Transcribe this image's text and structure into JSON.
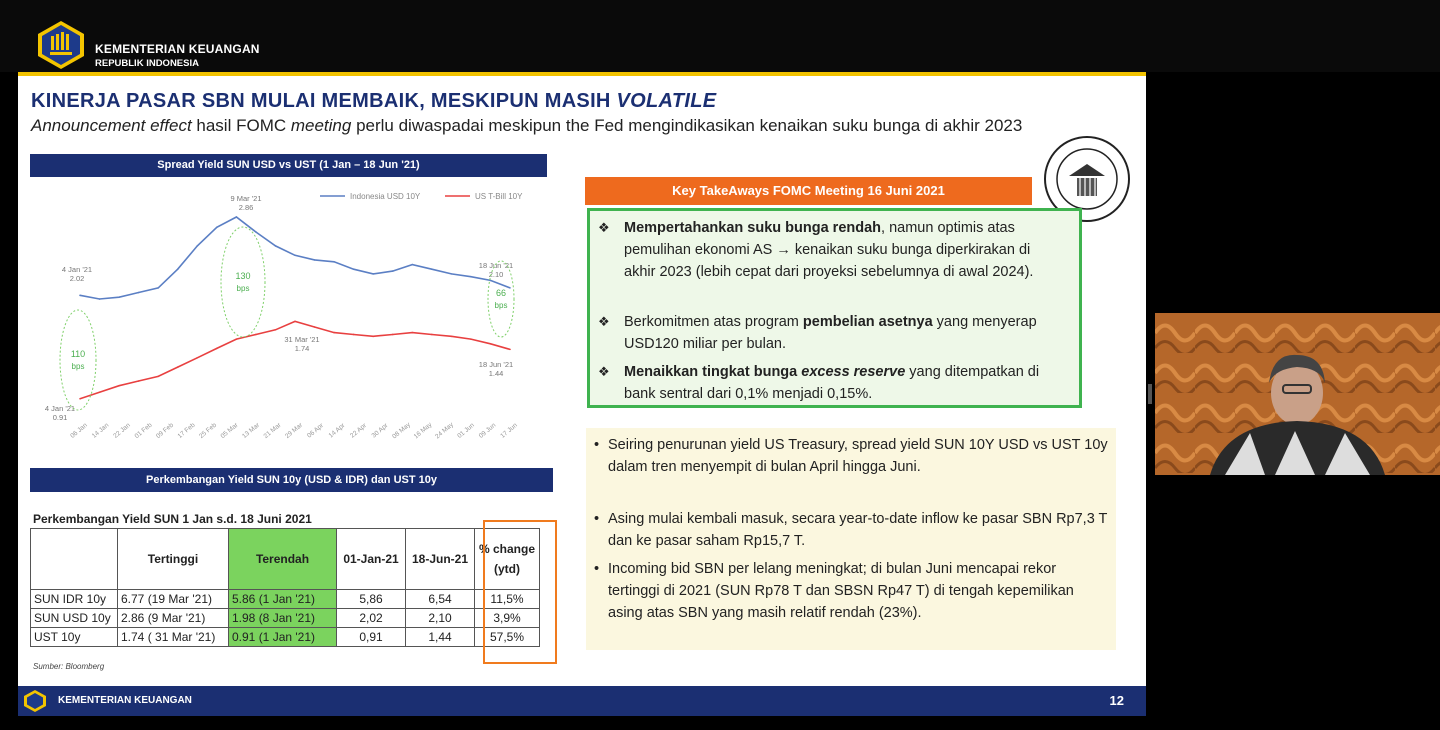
{
  "header": {
    "org_name": "KEMENTERIAN KEUANGAN",
    "org_sub": "REPUBLIK INDONESIA"
  },
  "slide": {
    "title_main": "KINERJA PASAR SBN MULAI MEMBAIK, MESKIPUN MASIH ",
    "title_italic": "VOLATILE",
    "subtitle_italic1": "Announcement effect",
    "subtitle_text1": " hasil FOMC ",
    "subtitle_italic2": "meeting",
    "subtitle_text2": " perlu diwaspadai meskipun the Fed mengindikasikan kenaikan suku bunga di akhir 2023",
    "chart1_header": "Spread Yield SUN USD vs UST (1 Jan – 18 Jun '21)",
    "chart2_header": "Perkembangan Yield SUN 10y (USD & IDR) dan UST 10y",
    "table_caption": "Perkembangan Yield SUN 1 Jan s.d. 18 Juni 2021",
    "table": {
      "headers": [
        "",
        "Tertinggi",
        "Terendah",
        "01-Jan-21",
        "18-Jun-21",
        "% change (ytd)"
      ],
      "rows": [
        [
          "SUN IDR 10y",
          "6.77 (19 Mar '21)",
          "5.86 (1 Jan '21)",
          "5,86",
          "6,54",
          "11,5%"
        ],
        [
          "SUN USD 10y",
          "2.86 (9 Mar '21)",
          "1.98 (8 Jan '21)",
          "2,02",
          "2,10",
          "3,9%"
        ],
        [
          "UST 10y",
          "1.74 ( 31 Mar '21)",
          "0.91 (1 Jan '21)",
          "0,91",
          "1,44",
          "57,5%"
        ]
      ]
    },
    "source": "Sumber: Bloomberg",
    "fomc_header": "Key TakeAways FOMC Meeting 16 Juni 2021",
    "fomc_items": [
      {
        "bold": "Mempertahankan suku bunga rendah",
        "rest": ", namun optimis atas pemulihan ekonomi AS → kenaikan suku bunga diperkirakan di akhir 2023 (lebih cepat dari proyeksi sebelumnya di awal 2024)."
      },
      {
        "pre": "Berkomitmen atas program ",
        "bold": "pembelian asetnya",
        "rest": " yang menyerap USD120 miliar per bulan."
      },
      {
        "bold": "Menaikkan tingkat bunga ",
        "bolditalic": "excess reserve",
        "rest": " yang ditempatkan di bank sentral dari 0,1% menjadi 0,15%."
      }
    ],
    "info_items": [
      "Seiring penurunan yield US Treasury, spread yield SUN 10Y USD vs UST 10y dalam tren menyempit di bulan April hingga Juni.",
      "Asing mulai kembali masuk, secara year-to-date inflow ke pasar SBN Rp7,3 T dan ke pasar saham Rp15,7 T.",
      "Incoming bid SBN per lelang meningkat; di bulan Juni mencapai rekor tertinggi di 2021 (SUN Rp78 T dan SBSN Rp47 T) di tengah kepemilikan asing atas SBN yang masih relatif rendah (23%)."
    ],
    "footer_text": "KEMENTERIAN KEUANGAN",
    "page_number": "12"
  },
  "chart_data": {
    "type": "line",
    "title": "Spread Yield SUN USD vs UST (1 Jan – 18 Jun '21)",
    "series": [
      {
        "name": "Indonesia USD 10Y",
        "color": "#5b7fc4",
        "values": [
          2.02,
          1.98,
          2.0,
          2.05,
          2.1,
          2.3,
          2.55,
          2.75,
          2.86,
          2.7,
          2.55,
          2.45,
          2.4,
          2.38,
          2.3,
          2.25,
          2.28,
          2.35,
          2.3,
          2.25,
          2.22,
          2.18,
          2.1
        ]
      },
      {
        "name": "US T-Bill 10Y",
        "color": "#e84040",
        "values": [
          0.91,
          0.98,
          1.05,
          1.1,
          1.15,
          1.25,
          1.35,
          1.45,
          1.55,
          1.6,
          1.65,
          1.74,
          1.68,
          1.62,
          1.6,
          1.58,
          1.6,
          1.62,
          1.6,
          1.58,
          1.55,
          1.5,
          1.44
        ]
      }
    ],
    "xlabels": [
      "06 Jan",
      "14 Jan",
      "22 Jan",
      "01 Feb",
      "09 Feb",
      "17 Feb",
      "25 Feb",
      "05 Mar",
      "13 Mar",
      "21 Mar",
      "29 Mar",
      "06 Apr",
      "14 Apr",
      "22 Apr",
      "30 Apr",
      "08 May",
      "16 May",
      "24 May",
      "01 Jun",
      "09 Jun",
      "17 Jun"
    ],
    "annotations": [
      {
        "label": "9 Mar '21",
        "value": "2.86"
      },
      {
        "label": "4 Jan '21",
        "value": "2.02"
      },
      {
        "label": "18 Jun '21",
        "value": "2.10"
      },
      {
        "label": "31 Mar '21",
        "value": "1.74"
      },
      {
        "label": "18 Jun '21",
        "value": "1.44"
      },
      {
        "label": "4 Jan '21",
        "value": "0.91"
      }
    ],
    "spreads": [
      {
        "value": "110",
        "unit": "bps"
      },
      {
        "value": "130",
        "unit": "bps"
      },
      {
        "value": "66",
        "unit": "bps"
      }
    ],
    "ylim": [
      0.8,
      3.0
    ]
  }
}
